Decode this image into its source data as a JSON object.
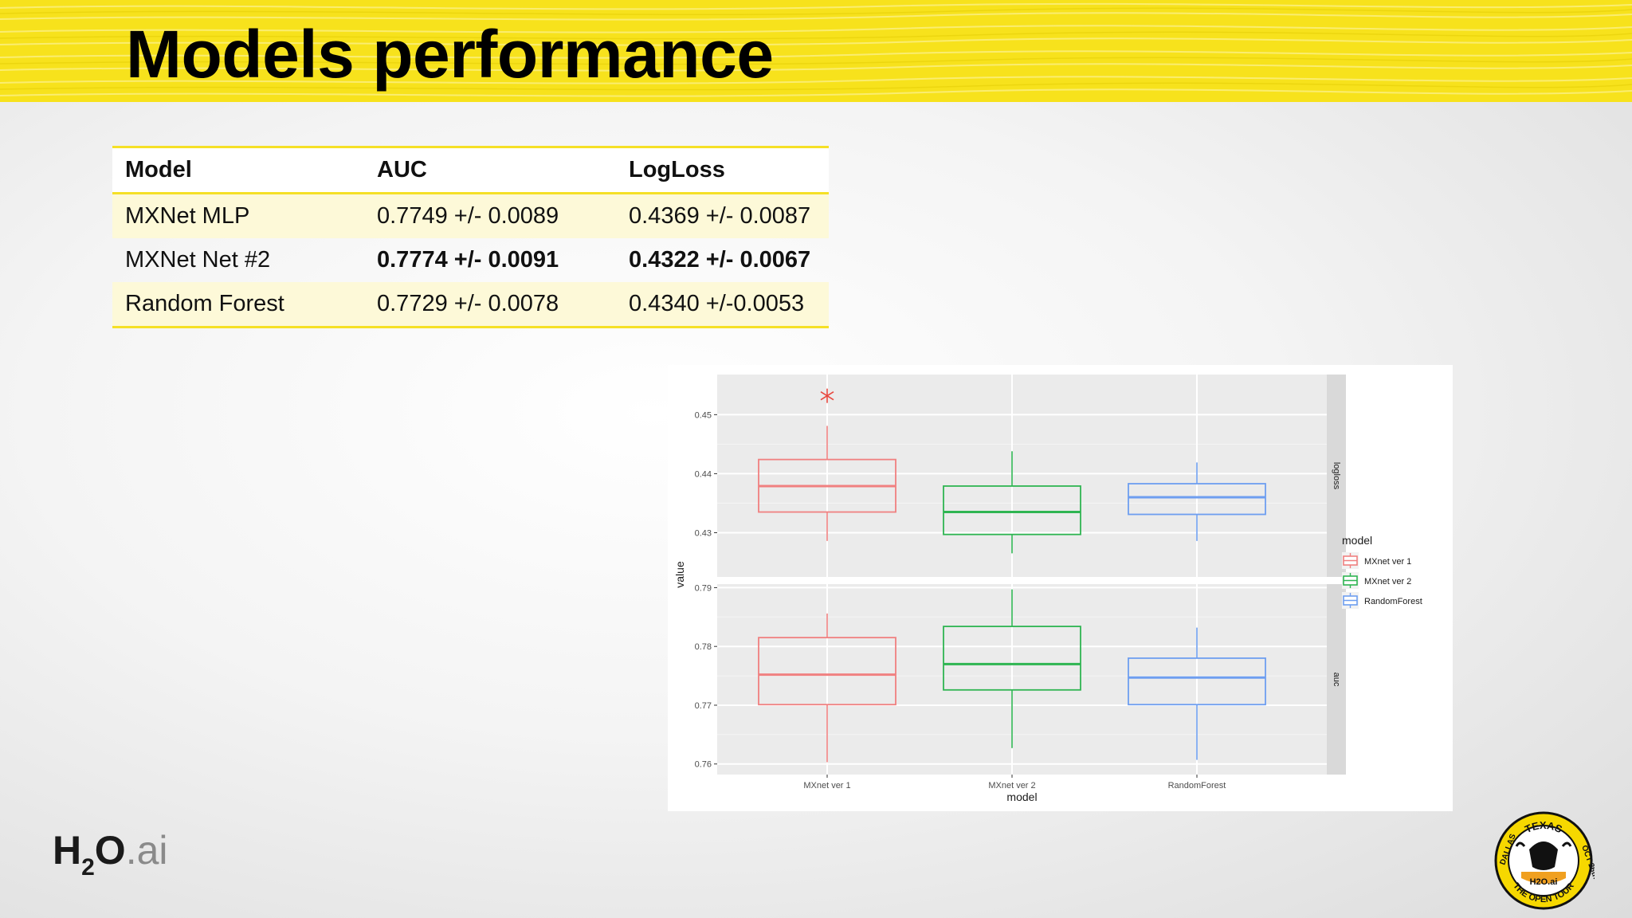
{
  "slide": {
    "title": "Models performance"
  },
  "table": {
    "headers": [
      "Model",
      "AUC",
      "LogLoss"
    ],
    "rows": [
      {
        "model": "MXNet MLP",
        "auc": "0.7749 +/- 0.0089",
        "logloss": "0.4369 +/- 0.0087",
        "bold": false
      },
      {
        "model": "MXNet Net #2",
        "auc": "0.7774 +/- 0.0091",
        "logloss": "0.4322 +/- 0.0067",
        "bold": true
      },
      {
        "model": "Random Forest",
        "auc": "0.7729 +/- 0.0078",
        "logloss": "0.4340 +/-0.0053",
        "bold": false
      }
    ]
  },
  "chart_data": {
    "type": "boxplot",
    "xlabel": "model",
    "ylabel": "value",
    "categories": [
      "MXnet ver 1",
      "MXnet ver 2",
      "RandomForest"
    ],
    "legend": {
      "title": "model",
      "position": "right"
    },
    "colors": {
      "MXnet ver 1": "#f08080",
      "MXnet ver 2": "#2fb552",
      "RandomForest": "#6e9ef0"
    },
    "facets": [
      {
        "strip": "logloss",
        "ylim": [
          0.4225,
          0.4568
        ],
        "ticks": [
          "0.43",
          "0.44",
          "0.45"
        ],
        "tick_values": [
          0.43,
          0.44,
          0.45
        ],
        "boxes": [
          {
            "name": "MXnet ver 1",
            "min": 0.4286,
            "q1": 0.4335,
            "median": 0.4379,
            "q3": 0.4424,
            "max": 0.4481,
            "outliers": [
              0.4532
            ]
          },
          {
            "name": "MXnet ver 2",
            "min": 0.4265,
            "q1": 0.4297,
            "median": 0.4335,
            "q3": 0.4379,
            "max": 0.4438,
            "outliers": []
          },
          {
            "name": "RandomForest",
            "min": 0.4286,
            "q1": 0.4331,
            "median": 0.436,
            "q3": 0.4383,
            "max": 0.4419,
            "outliers": []
          }
        ]
      },
      {
        "strip": "auc",
        "ylim": [
          0.7582,
          0.7906
        ],
        "ticks": [
          "0.76",
          "0.77",
          "0.78",
          "0.79"
        ],
        "tick_values": [
          0.76,
          0.77,
          0.78,
          0.79
        ],
        "boxes": [
          {
            "name": "MXnet ver 1",
            "min": 0.7603,
            "q1": 0.7701,
            "median": 0.7752,
            "q3": 0.7815,
            "max": 0.7856,
            "outliers": []
          },
          {
            "name": "MXnet ver 2",
            "min": 0.7627,
            "q1": 0.7726,
            "median": 0.777,
            "q3": 0.7834,
            "max": 0.7897,
            "outliers": []
          },
          {
            "name": "RandomForest",
            "min": 0.7607,
            "q1": 0.7701,
            "median": 0.7747,
            "q3": 0.778,
            "max": 0.7832,
            "outliers": []
          }
        ]
      }
    ]
  },
  "footer": {
    "logo_main": "H",
    "logo_sub": "2",
    "logo_o": "O",
    "logo_ai": ".ai",
    "badge_top": "TEXAS",
    "badge_left": "DALLAS",
    "badge_right": "OCT 26th",
    "badge_bottom": "THE OPEN TOUR",
    "badge_center": "H2O.ai"
  },
  "colors": {
    "banner": "#f7e21c",
    "table_rule": "#f5e026",
    "row_shade": "#fdf9d8"
  }
}
